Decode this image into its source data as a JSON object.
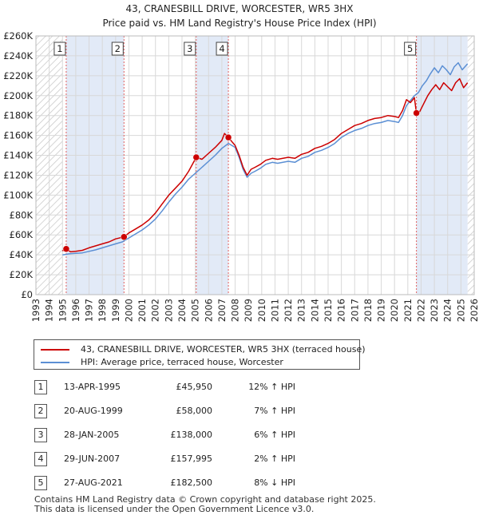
{
  "chart_data": {
    "type": "line",
    "title": "43, CRANESBILL DRIVE, WORCESTER, WR5 3HX",
    "subtitle": "Price paid vs. HM Land Registry's House Price Index (HPI)",
    "xlim": [
      1993,
      2026
    ],
    "ylim": [
      0,
      260000
    ],
    "x_ticks": [
      1993,
      1994,
      1995,
      1996,
      1997,
      1998,
      1999,
      2000,
      2001,
      2002,
      2003,
      2004,
      2005,
      2006,
      2007,
      2008,
      2009,
      2010,
      2011,
      2012,
      2013,
      2014,
      2015,
      2016,
      2017,
      2018,
      2019,
      2020,
      2021,
      2022,
      2023,
      2024,
      2025,
      2026
    ],
    "y_ticks": [
      {
        "value": 0,
        "label": "£0"
      },
      {
        "value": 20000,
        "label": "£20K"
      },
      {
        "value": 40000,
        "label": "£40K"
      },
      {
        "value": 60000,
        "label": "£60K"
      },
      {
        "value": 80000,
        "label": "£80K"
      },
      {
        "value": 100000,
        "label": "£100K"
      },
      {
        "value": 120000,
        "label": "£120K"
      },
      {
        "value": 140000,
        "label": "£140K"
      },
      {
        "value": 160000,
        "label": "£160K"
      },
      {
        "value": 180000,
        "label": "£180K"
      },
      {
        "value": 200000,
        "label": "£200K"
      },
      {
        "value": 220000,
        "label": "£220K"
      },
      {
        "value": 240000,
        "label": "£240K"
      },
      {
        "value": 260000,
        "label": "£260K"
      }
    ],
    "shaded_ranges": [
      [
        1995.28,
        1999.63
      ],
      [
        2005.07,
        2007.49
      ],
      [
        2021.65,
        2025.5
      ]
    ],
    "hatched_ranges": [
      [
        1993,
        1995.0
      ],
      [
        2025.5,
        2026
      ]
    ],
    "series": [
      {
        "name": "43, CRANESBILL DRIVE, WORCESTER, WR5 3HX (terraced house)",
        "color": "#cc0000",
        "x": [
          1995.0,
          1995.28,
          1995.6,
          1996.0,
          1996.5,
          1997.0,
          1997.5,
          1998.0,
          1998.5,
          1999.0,
          1999.63,
          2000.0,
          2000.5,
          2001.0,
          2001.5,
          2002.0,
          2002.5,
          2003.0,
          2003.5,
          2004.0,
          2004.5,
          2005.07,
          2005.5,
          2006.0,
          2006.5,
          2007.0,
          2007.2,
          2007.49,
          2007.8,
          2008.0,
          2008.3,
          2008.6,
          2008.9,
          2009.2,
          2009.5,
          2009.9,
          2010.3,
          2010.8,
          2011.2,
          2011.6,
          2012.0,
          2012.5,
          2013.0,
          2013.5,
          2014.0,
          2014.5,
          2015.0,
          2015.5,
          2016.0,
          2016.5,
          2017.0,
          2017.5,
          2018.0,
          2018.5,
          2019.0,
          2019.5,
          2020.0,
          2020.3,
          2020.6,
          2020.9,
          2021.2,
          2021.5,
          2021.65,
          2021.9,
          2022.2,
          2022.5,
          2022.8,
          2023.1,
          2023.4,
          2023.7,
          2024.0,
          2024.3,
          2024.6,
          2024.9,
          2025.2,
          2025.5
        ],
        "values": [
          44000,
          45950,
          43000,
          43500,
          44500,
          47000,
          49000,
          51000,
          53000,
          56000,
          58000,
          62000,
          66000,
          70000,
          75000,
          82000,
          91000,
          100000,
          107000,
          114000,
          124000,
          138000,
          136000,
          142000,
          148000,
          155000,
          162000,
          157995,
          153000,
          150000,
          140000,
          128000,
          120000,
          126000,
          128000,
          131000,
          135000,
          137000,
          136000,
          137000,
          138000,
          137000,
          141000,
          143000,
          147000,
          149000,
          152000,
          156000,
          162000,
          166000,
          170000,
          172000,
          175000,
          177000,
          178000,
          180000,
          179000,
          178000,
          185000,
          196000,
          193000,
          198000,
          182500,
          184000,
          192000,
          200000,
          206000,
          211000,
          206000,
          213000,
          209000,
          205000,
          213000,
          217000,
          208000,
          213000
        ]
      },
      {
        "name": "HPI: Average price, terraced house, Worcester",
        "color": "#5b8fd4",
        "x": [
          1995.0,
          1995.5,
          1996.0,
          1996.5,
          1997.0,
          1997.5,
          1998.0,
          1998.5,
          1999.0,
          1999.5,
          2000.0,
          2000.5,
          2001.0,
          2001.5,
          2002.0,
          2002.5,
          2003.0,
          2003.5,
          2004.0,
          2004.5,
          2005.0,
          2005.5,
          2006.0,
          2006.5,
          2007.0,
          2007.5,
          2008.0,
          2008.3,
          2008.6,
          2008.9,
          2009.2,
          2009.5,
          2009.9,
          2010.3,
          2010.8,
          2011.2,
          2011.6,
          2012.0,
          2012.5,
          2013.0,
          2013.5,
          2014.0,
          2014.5,
          2015.0,
          2015.5,
          2016.0,
          2016.5,
          2017.0,
          2017.5,
          2018.0,
          2018.5,
          2019.0,
          2019.5,
          2020.0,
          2020.3,
          2020.6,
          2020.9,
          2021.2,
          2021.5,
          2021.8,
          2022.1,
          2022.4,
          2022.7,
          2023.0,
          2023.3,
          2023.6,
          2023.9,
          2024.2,
          2024.5,
          2024.8,
          2025.1,
          2025.5
        ],
        "values": [
          40000,
          41000,
          41500,
          42000,
          43500,
          45000,
          47000,
          49000,
          51000,
          53000,
          57000,
          61000,
          65000,
          70000,
          76000,
          84000,
          93000,
          101000,
          108000,
          116000,
          122000,
          128000,
          134000,
          140000,
          147000,
          152000,
          148000,
          138000,
          126000,
          118000,
          122000,
          124000,
          127000,
          131000,
          133000,
          132000,
          133000,
          134000,
          133000,
          137000,
          139000,
          143000,
          145000,
          148000,
          152000,
          158000,
          162000,
          165000,
          167000,
          170000,
          172000,
          173000,
          175000,
          174000,
          173000,
          180000,
          190000,
          195000,
          200000,
          203000,
          210000,
          215000,
          222000,
          228000,
          223000,
          230000,
          226000,
          221000,
          229000,
          233000,
          226000,
          232000
        ]
      }
    ],
    "markers": [
      {
        "id": "1",
        "x": 1995.28,
        "value": 45950
      },
      {
        "id": "2",
        "x": 1999.63,
        "value": 58000
      },
      {
        "id": "3",
        "x": 2005.07,
        "value": 138000
      },
      {
        "id": "4",
        "x": 2007.49,
        "value": 157995
      },
      {
        "id": "5",
        "x": 2021.65,
        "value": 182500
      }
    ]
  },
  "legend": {
    "property_label": "43, CRANESBILL DRIVE, WORCESTER, WR5 3HX (terraced house)",
    "hpi_label": "HPI: Average price, terraced house, Worcester",
    "property_color": "#cc0000",
    "hpi_color": "#5b8fd4"
  },
  "sales": [
    {
      "num": "1",
      "date": "13-APR-1995",
      "price": "£45,950",
      "hpi": "12% ↑ HPI"
    },
    {
      "num": "2",
      "date": "20-AUG-1999",
      "price": "£58,000",
      "hpi": "7% ↑ HPI"
    },
    {
      "num": "3",
      "date": "28-JAN-2005",
      "price": "£138,000",
      "hpi": "6% ↑ HPI"
    },
    {
      "num": "4",
      "date": "29-JUN-2007",
      "price": "£157,995",
      "hpi": "2% ↑ HPI"
    },
    {
      "num": "5",
      "date": "27-AUG-2021",
      "price": "£182,500",
      "hpi": "8% ↓ HPI"
    }
  ],
  "footer": {
    "line1": "Contains HM Land Registry data © Crown copyright and database right 2025.",
    "line2": "This data is licensed under the Open Government Licence v3.0."
  }
}
